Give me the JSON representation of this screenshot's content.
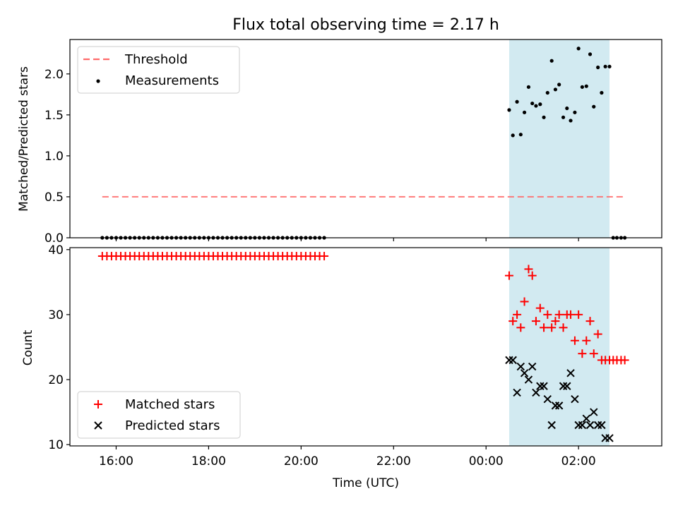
{
  "chart_data": {
    "title": "Flux total observing time = 2.17 h",
    "xlabel": "Time (UTC)",
    "x_unit": "hours since 00:00 UTC",
    "xlim": [
      -9.0,
      3.8
    ],
    "xticks": [
      {
        "value": -8,
        "label": "16:00"
      },
      {
        "value": -6,
        "label": "18:00"
      },
      {
        "value": -4,
        "label": "20:00"
      },
      {
        "value": -2,
        "label": "22:00"
      },
      {
        "value": 0,
        "label": "00:00"
      },
      {
        "value": 2,
        "label": "02:00"
      }
    ],
    "highlight_span": {
      "from": 0.5,
      "to": 2.67,
      "color": "#add8e6"
    },
    "top_panel": {
      "type": "scatter",
      "ylabel": "Matched/Predicted stars",
      "ylim": [
        0.0,
        2.42
      ],
      "yticks": [
        "0.0",
        "0.5",
        "1.0",
        "1.5",
        "2.0"
      ],
      "threshold": {
        "name": "Threshold",
        "value": 0.5,
        "x_from": -8.3,
        "x_to": 3.0,
        "color": "#ff6b6b"
      },
      "series": [
        {
          "name": "Measurements",
          "color": "#000000",
          "points": [
            [
              -8.3,
              0
            ],
            [
              -8.2,
              0
            ],
            [
              -8.1,
              0
            ],
            [
              -8.0,
              0
            ],
            [
              -7.9,
              0
            ],
            [
              -7.8,
              0
            ],
            [
              -7.7,
              0
            ],
            [
              -7.6,
              0
            ],
            [
              -7.5,
              0
            ],
            [
              -7.4,
              0
            ],
            [
              -7.3,
              0
            ],
            [
              -7.2,
              0
            ],
            [
              -7.1,
              0
            ],
            [
              -7.0,
              0
            ],
            [
              -6.9,
              0
            ],
            [
              -6.8,
              0
            ],
            [
              -6.7,
              0
            ],
            [
              -6.6,
              0
            ],
            [
              -6.5,
              0
            ],
            [
              -6.4,
              0
            ],
            [
              -6.3,
              0
            ],
            [
              -6.2,
              0
            ],
            [
              -6.1,
              0
            ],
            [
              -6.0,
              0
            ],
            [
              -5.9,
              0
            ],
            [
              -5.8,
              0
            ],
            [
              -5.7,
              0
            ],
            [
              -5.6,
              0
            ],
            [
              -5.5,
              0
            ],
            [
              -5.4,
              0
            ],
            [
              -5.3,
              0
            ],
            [
              -5.2,
              0
            ],
            [
              -5.1,
              0
            ],
            [
              -5.0,
              0
            ],
            [
              -4.9,
              0
            ],
            [
              -4.8,
              0
            ],
            [
              -4.7,
              0
            ],
            [
              -4.6,
              0
            ],
            [
              -4.5,
              0
            ],
            [
              -4.4,
              0
            ],
            [
              -4.3,
              0
            ],
            [
              -4.2,
              0
            ],
            [
              -4.1,
              0
            ],
            [
              -4.0,
              0
            ],
            [
              -3.9,
              0
            ],
            [
              -3.8,
              0
            ],
            [
              -3.7,
              0
            ],
            [
              -3.6,
              0
            ],
            [
              -3.5,
              0
            ],
            [
              0.5,
              1.56
            ],
            [
              0.58,
              1.25
            ],
            [
              0.67,
              1.66
            ],
            [
              0.75,
              1.26
            ],
            [
              0.83,
              1.53
            ],
            [
              0.92,
              1.84
            ],
            [
              1.0,
              1.64
            ],
            [
              1.08,
              1.61
            ],
            [
              1.17,
              1.63
            ],
            [
              1.25,
              1.47
            ],
            [
              1.33,
              1.77
            ],
            [
              1.42,
              2.16
            ],
            [
              1.5,
              1.81
            ],
            [
              1.58,
              1.87
            ],
            [
              1.67,
              1.47
            ],
            [
              1.75,
              1.58
            ],
            [
              1.83,
              1.43
            ],
            [
              1.92,
              1.53
            ],
            [
              2.0,
              2.31
            ],
            [
              2.08,
              1.84
            ],
            [
              2.17,
              1.85
            ],
            [
              2.25,
              2.24
            ],
            [
              2.33,
              1.6
            ],
            [
              2.42,
              2.08
            ],
            [
              2.5,
              1.77
            ],
            [
              2.58,
              2.09
            ],
            [
              2.67,
              2.09
            ],
            [
              2.75,
              0
            ],
            [
              2.83,
              0
            ],
            [
              2.92,
              0
            ],
            [
              3.0,
              0
            ]
          ]
        }
      ],
      "legend": {
        "position": "upper left",
        "items": [
          "Threshold",
          "Measurements"
        ]
      }
    },
    "bottom_panel": {
      "type": "scatter",
      "ylabel": "Count",
      "ylim": [
        9.8,
        40.3
      ],
      "yticks": [
        "10",
        "20",
        "30",
        "40"
      ],
      "series": [
        {
          "name": "Matched stars",
          "marker": "+",
          "color": "#ff0000",
          "points": [
            [
              -8.3,
              39
            ],
            [
              -8.2,
              39
            ],
            [
              -8.1,
              39
            ],
            [
              -8.0,
              39
            ],
            [
              -7.9,
              39
            ],
            [
              -7.8,
              39
            ],
            [
              -7.7,
              39
            ],
            [
              -7.6,
              39
            ],
            [
              -7.5,
              39
            ],
            [
              -7.4,
              39
            ],
            [
              -7.3,
              39
            ],
            [
              -7.2,
              39
            ],
            [
              -7.1,
              39
            ],
            [
              -7.0,
              39
            ],
            [
              -6.9,
              39
            ],
            [
              -6.8,
              39
            ],
            [
              -6.7,
              39
            ],
            [
              -6.6,
              39
            ],
            [
              -6.5,
              39
            ],
            [
              -6.4,
              39
            ],
            [
              -6.3,
              39
            ],
            [
              -6.2,
              39
            ],
            [
              -6.1,
              39
            ],
            [
              -6.0,
              39
            ],
            [
              -5.9,
              39
            ],
            [
              -5.8,
              39
            ],
            [
              -5.7,
              39
            ],
            [
              -5.6,
              39
            ],
            [
              -5.5,
              39
            ],
            [
              -5.4,
              39
            ],
            [
              -5.3,
              39
            ],
            [
              -5.2,
              39
            ],
            [
              -5.1,
              39
            ],
            [
              -5.0,
              39
            ],
            [
              -4.9,
              39
            ],
            [
              -4.8,
              39
            ],
            [
              -4.7,
              39
            ],
            [
              -4.6,
              39
            ],
            [
              -4.5,
              39
            ],
            [
              -4.4,
              39
            ],
            [
              -4.3,
              39
            ],
            [
              -4.2,
              39
            ],
            [
              -4.1,
              39
            ],
            [
              -4.0,
              39
            ],
            [
              -3.9,
              39
            ],
            [
              -3.8,
              39
            ],
            [
              -3.7,
              39
            ],
            [
              -3.6,
              39
            ],
            [
              -3.5,
              39
            ],
            [
              0.5,
              36
            ],
            [
              0.58,
              29
            ],
            [
              0.67,
              30
            ],
            [
              0.75,
              28
            ],
            [
              0.83,
              32
            ],
            [
              0.92,
              37
            ],
            [
              1.0,
              36
            ],
            [
              1.08,
              29
            ],
            [
              1.17,
              31
            ],
            [
              1.25,
              28
            ],
            [
              1.33,
              30
            ],
            [
              1.42,
              28
            ],
            [
              1.5,
              29
            ],
            [
              1.58,
              30
            ],
            [
              1.67,
              28
            ],
            [
              1.75,
              30
            ],
            [
              1.83,
              30
            ],
            [
              1.92,
              26
            ],
            [
              2.0,
              30
            ],
            [
              2.08,
              24
            ],
            [
              2.17,
              26
            ],
            [
              2.25,
              29
            ],
            [
              2.33,
              24
            ],
            [
              2.42,
              27
            ],
            [
              2.5,
              23
            ],
            [
              2.58,
              23
            ],
            [
              2.67,
              23
            ],
            [
              2.75,
              23
            ],
            [
              2.83,
              23
            ],
            [
              2.92,
              23
            ],
            [
              3.0,
              23
            ]
          ]
        },
        {
          "name": "Predicted stars",
          "marker": "x",
          "color": "#000000",
          "points": [
            [
              0.5,
              23
            ],
            [
              0.58,
              23
            ],
            [
              0.67,
              18
            ],
            [
              0.75,
              22
            ],
            [
              0.83,
              21
            ],
            [
              0.92,
              20
            ],
            [
              1.0,
              22
            ],
            [
              1.08,
              18
            ],
            [
              1.17,
              19
            ],
            [
              1.25,
              19
            ],
            [
              1.33,
              17
            ],
            [
              1.42,
              13
            ],
            [
              1.5,
              16
            ],
            [
              1.58,
              16
            ],
            [
              1.67,
              19
            ],
            [
              1.75,
              19
            ],
            [
              1.83,
              21
            ],
            [
              1.92,
              17
            ],
            [
              2.0,
              13
            ],
            [
              2.08,
              13
            ],
            [
              2.17,
              14
            ],
            [
              2.25,
              13
            ],
            [
              2.33,
              15
            ],
            [
              2.42,
              13
            ],
            [
              2.5,
              13
            ],
            [
              2.58,
              11
            ],
            [
              2.67,
              11
            ]
          ]
        }
      ],
      "legend": {
        "position": "lower left",
        "items": [
          "Matched stars",
          "Predicted stars"
        ]
      }
    }
  }
}
